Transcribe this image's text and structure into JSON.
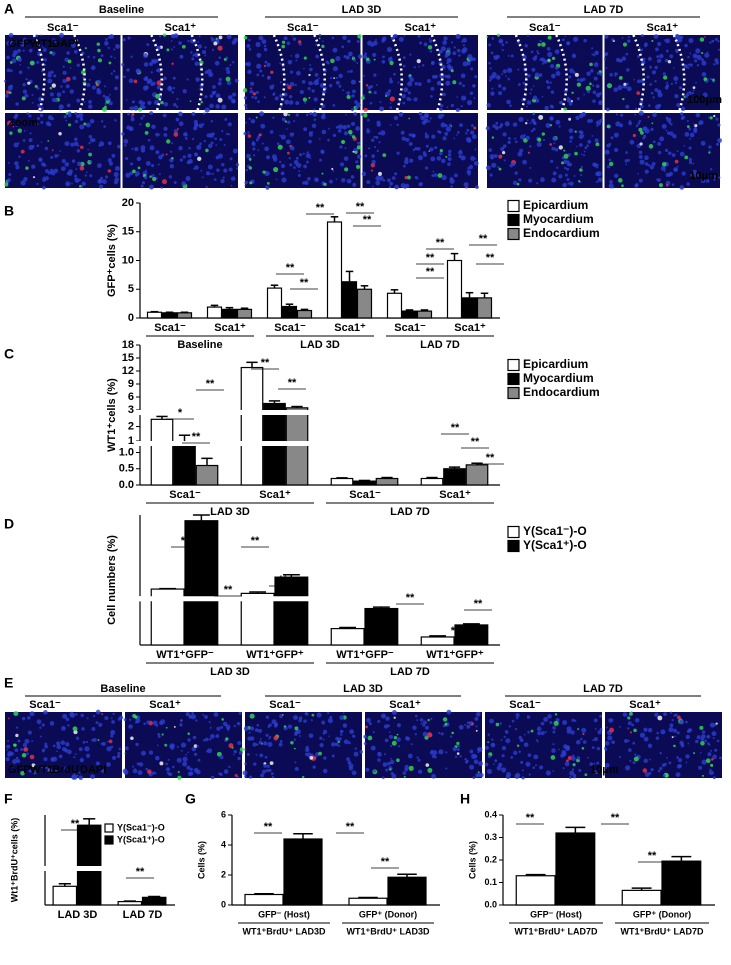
{
  "panel_a": {
    "label": "A",
    "groups": [
      "Baseline",
      "LAD 3D",
      "LAD 7D"
    ],
    "columns": [
      "Sca1⁻",
      "Sca1⁺"
    ],
    "stain": [
      "GFP",
      "WT1",
      "DAPI"
    ],
    "stain_colors": [
      "#22dd22",
      "#ff2222",
      "#3355ff"
    ],
    "zoom": "Zoom",
    "scale_top": "100μm",
    "scale_bottom": "10μm"
  },
  "panel_e": {
    "label": "E",
    "groups": [
      "Baseline",
      "LAD 3D",
      "LAD 7D"
    ],
    "columns": [
      "Sca1⁻",
      "Sca1⁺"
    ],
    "stain": [
      "GFP",
      "WT1",
      "BrdU",
      "DAPI"
    ],
    "stain_colors": [
      "#22dd22",
      "#ff2222",
      "#ffffff",
      "#3355ff"
    ],
    "scale": "10μm"
  },
  "chart_data": [
    {
      "panel": "B",
      "type": "bar",
      "ylabel": "GFP⁺cells (%)",
      "categories": [
        "Sca1⁻",
        "Sca1⁺",
        "Sca1⁻",
        "Sca1⁺",
        "Sca1⁻",
        "Sca1⁺"
      ],
      "groups": [
        "Baseline",
        "LAD 3D",
        "LAD 7D"
      ],
      "ylim": [
        0,
        20
      ],
      "yticks": [
        0,
        5,
        10,
        15,
        20
      ],
      "series": [
        {
          "name": "Epicardium",
          "color": "#ffffff",
          "values": [
            1.0,
            1.9,
            5.2,
            16.7,
            4.3,
            10.0
          ],
          "errors": [
            0.1,
            0.3,
            0.5,
            0.9,
            0.6,
            1.2
          ]
        },
        {
          "name": "Myocardium",
          "color": "#000000",
          "values": [
            0.9,
            1.5,
            2.0,
            6.3,
            1.2,
            3.5
          ],
          "errors": [
            0.1,
            0.3,
            0.4,
            1.8,
            0.2,
            0.9
          ]
        },
        {
          "name": "Endocardium",
          "color": "#888888",
          "values": [
            0.9,
            1.5,
            1.3,
            5.0,
            1.2,
            3.5
          ],
          "errors": [
            0.1,
            0.2,
            0.2,
            0.6,
            0.2,
            0.8
          ]
        }
      ],
      "annotations": [
        "**",
        "**",
        "**",
        "**",
        "**",
        "**",
        "**",
        "**",
        "**",
        "**"
      ]
    },
    {
      "panel": "C",
      "type": "bar",
      "ylabel": "WT1⁺cells (%)",
      "categories": [
        "Sca1⁻",
        "Sca1⁺",
        "Sca1⁻",
        "Sca1⁺"
      ],
      "groups": [
        "LAD 3D",
        "LAD 7D"
      ],
      "ybreaks": [
        {
          "ylim": [
            0,
            1.2
          ],
          "yticks": [
            {
              "value": 0,
              "label": "0.0"
            },
            0.5,
            {
              "value": 1,
              "label": "1.0"
            }
          ]
        },
        {
          "ylim": [
            1,
            2.8
          ],
          "yticks": [
            1,
            2
          ]
        },
        {
          "ylim": [
            3,
            18
          ],
          "yticks": [
            3,
            6,
            9,
            12,
            15,
            18
          ]
        }
      ],
      "series": [
        {
          "name": "Epicardium",
          "color": "#ffffff",
          "values": [
            2.5,
            12.8,
            0.2,
            0.2
          ],
          "errors": [
            0.2,
            1.2,
            0.02,
            0.03
          ]
        },
        {
          "name": "Myocardium",
          "color": "#000000",
          "values": [
            1.2,
            4.5,
            0.12,
            0.5
          ],
          "errors": [
            0.2,
            0.6,
            0.02,
            0.05
          ]
        },
        {
          "name": "Endocardium",
          "color": "#888888",
          "values": [
            0.6,
            3.5,
            0.2,
            0.62
          ],
          "errors": [
            0.22,
            0.3,
            0.03,
            0.05
          ]
        }
      ],
      "annotations": [
        "**",
        "**",
        "**",
        "*",
        "**",
        "**",
        "**",
        "**"
      ]
    },
    {
      "panel": "D",
      "type": "bar",
      "ylabel": "Cell numbers (%)",
      "categories": [
        "WT1⁺GFP⁻",
        "WT1⁺GFP⁺",
        "WT1⁺GFP⁻",
        "WT1⁺GFP⁺"
      ],
      "groups": [
        "LAD 3D",
        "LAD 7D"
      ],
      "ybreaks": [
        {
          "ylim": [
            0,
            1.2
          ]
        },
        {
          "ylim": [
            1,
            18
          ]
        }
      ],
      "series": [
        {
          "name": "Y(Sca1⁻)-O",
          "color": "#ffffff",
          "values": [
            2.5,
            1.6,
            0.45,
            0.22
          ],
          "errors": [
            0.1,
            0.3,
            0.03,
            0.03
          ]
        },
        {
          "name": "Y(Sca1⁺)-O",
          "color": "#000000",
          "values": [
            16.8,
            5.0,
            1.0,
            0.55
          ],
          "errors": [
            1.2,
            0.5,
            0.04,
            0.03
          ]
        }
      ],
      "annotations": [
        "**",
        "**",
        "**",
        "**",
        "**",
        "**",
        "**",
        "**"
      ]
    },
    {
      "panel": "F",
      "type": "bar",
      "ylabel": "Wt1⁺BrdU⁺cells (%)",
      "categories": [
        "LAD 3D",
        "LAD 7D"
      ],
      "ybreaks": [
        {
          "ylim": [
            0,
            2
          ]
        },
        {
          "ylim": [
            3,
            7
          ]
        }
      ],
      "series": [
        {
          "name": "Y(Sca1⁻)-O",
          "color": "#ffffff",
          "values": [
            1.1,
            0.2
          ],
          "errors": [
            0.15,
            0.03
          ]
        },
        {
          "name": "Y(Sca1⁺)-O",
          "color": "#000000",
          "values": [
            6.2,
            0.45
          ],
          "errors": [
            0.5,
            0.05
          ]
        }
      ],
      "annotations": [
        "**",
        "**"
      ]
    },
    {
      "panel": "G",
      "type": "bar",
      "ylabel": "Cells (%)",
      "categories": [
        "GFP⁻ (Host)",
        "GFP⁺ (Donor)"
      ],
      "groups": [
        "WT1⁺BrdU⁺ LAD3D",
        "WT1⁺BrdU⁺ LAD3D"
      ],
      "ylim": [
        0,
        6
      ],
      "yticks": [
        0,
        2,
        4,
        6
      ],
      "series": [
        {
          "color": "#ffffff",
          "values": [
            0.7,
            0.45
          ],
          "errors": [
            0.05,
            0.05
          ]
        },
        {
          "color": "#000000",
          "values": [
            4.4,
            1.85
          ],
          "errors": [
            0.35,
            0.2
          ]
        }
      ],
      "annotations": [
        "**",
        "**",
        "**"
      ]
    },
    {
      "panel": "H",
      "type": "bar",
      "ylabel": "Cells (%)",
      "categories": [
        "GFP⁻ (Host)",
        "GFP⁺ (Donor)"
      ],
      "groups": [
        "WT1⁺BrdU⁺ LAD7D",
        "WT1⁺BrdU⁺ LAD7D"
      ],
      "ylim": [
        0,
        0.4
      ],
      "yticks": [
        {
          "value": 0,
          "label": "0.0"
        },
        0.1,
        0.2,
        0.3,
        0.4
      ],
      "series": [
        {
          "color": "#ffffff",
          "values": [
            0.13,
            0.065
          ],
          "errors": [
            0.005,
            0.01
          ]
        },
        {
          "color": "#000000",
          "values": [
            0.32,
            0.195
          ],
          "errors": [
            0.025,
            0.02
          ]
        }
      ],
      "annotations": [
        "**",
        "**",
        "**"
      ]
    }
  ]
}
